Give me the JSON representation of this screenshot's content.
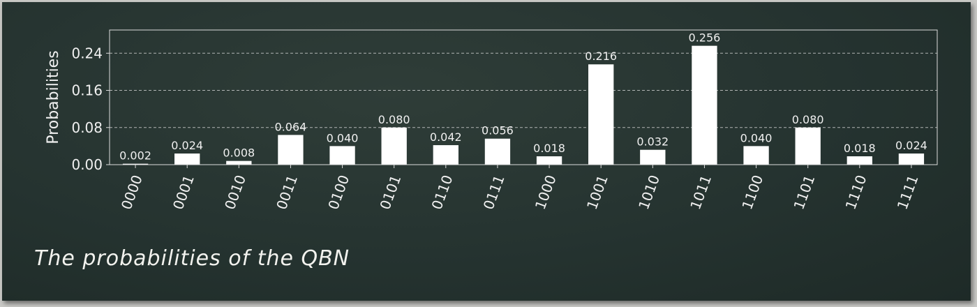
{
  "caption": "The probabilities of the QBN",
  "colors": {
    "background": "#263430",
    "bar": "#ffffff",
    "text": "#f0f0f0",
    "grid": "#e0e0e0"
  },
  "chart_data": {
    "type": "bar",
    "title": "",
    "xlabel": "",
    "ylabel": "Probabilities",
    "ylim": [
      0,
      0.29
    ],
    "yticks": [
      0.0,
      0.08,
      0.16,
      0.24
    ],
    "ytick_labels": [
      "0.00",
      "0.08",
      "0.16",
      "0.24"
    ],
    "grid": "horizontal-dashed",
    "categories": [
      "0000",
      "0001",
      "0010",
      "0011",
      "0100",
      "0101",
      "0110",
      "0111",
      "1000",
      "1001",
      "1010",
      "1011",
      "1100",
      "1101",
      "1110",
      "1111"
    ],
    "values": [
      0.002,
      0.024,
      0.008,
      0.064,
      0.04,
      0.08,
      0.042,
      0.056,
      0.018,
      0.216,
      0.032,
      0.256,
      0.04,
      0.08,
      0.018,
      0.024
    ],
    "value_labels": [
      "0.002",
      "0.024",
      "0.008",
      "0.064",
      "0.040",
      "0.080",
      "0.042",
      "0.056",
      "0.018",
      "0.216",
      "0.032",
      "0.256",
      "0.040",
      "0.080",
      "0.018",
      "0.024"
    ],
    "xtick_rotation": "70"
  }
}
